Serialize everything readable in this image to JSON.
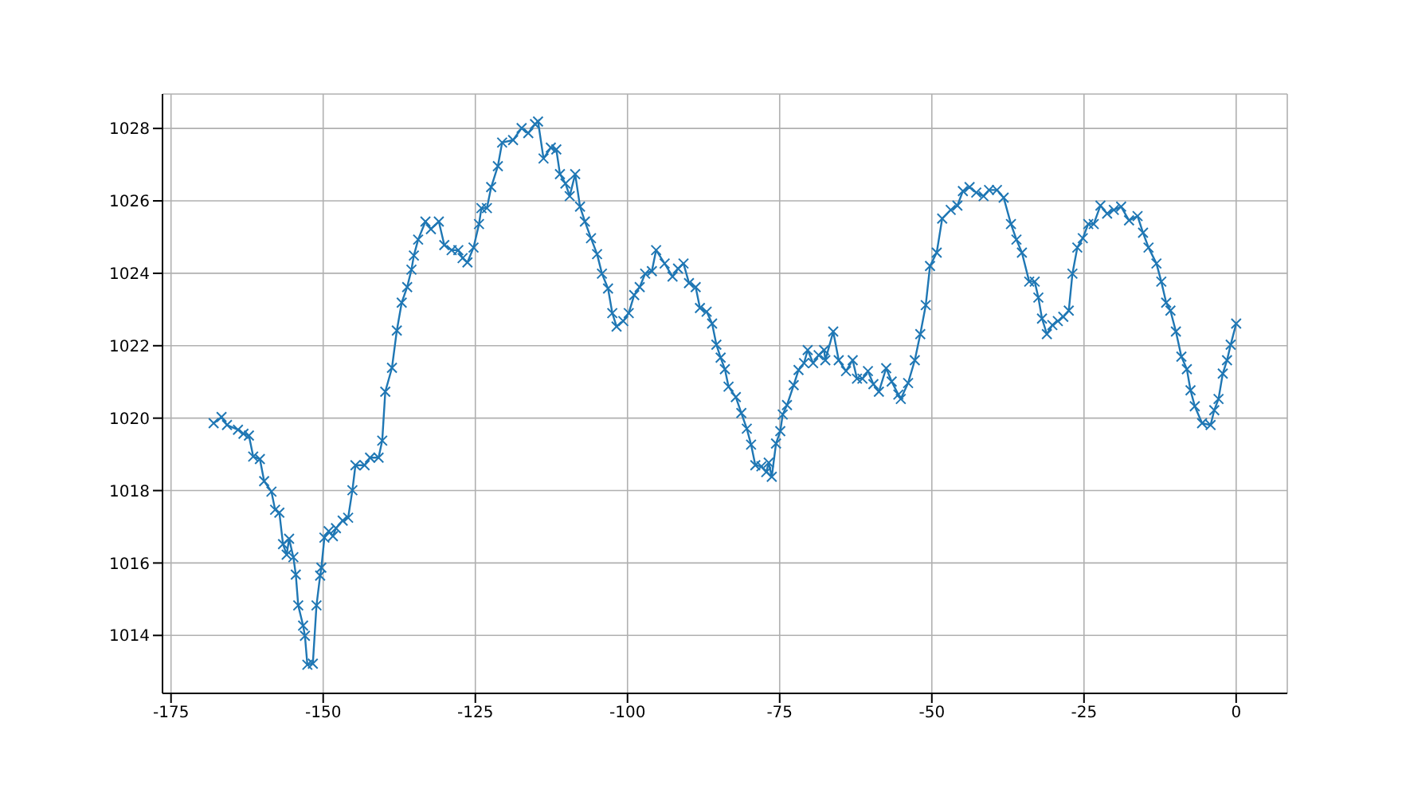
{
  "chart_data": {
    "type": "line",
    "x": [
      -168.0,
      -166.7,
      -165.8,
      -164.0,
      -163.1,
      -162.2,
      -161.5,
      -160.4,
      -159.7,
      -158.5,
      -157.9,
      -157.2,
      -156.6,
      -156.0,
      -155.6,
      -154.9,
      -154.5,
      -154.1,
      -153.3,
      -153.0,
      -152.6,
      -151.7,
      -151.1,
      -150.5,
      -150.3,
      -149.8,
      -149.1,
      -148.4,
      -147.9,
      -146.8,
      -145.9,
      -145.2,
      -144.7,
      -143.2,
      -142.3,
      -140.9,
      -140.3,
      -139.8,
      -138.7,
      -137.9,
      -137.1,
      -136.2,
      -135.5,
      -135.1,
      -134.4,
      -133.2,
      -132.3,
      -131.0,
      -130.1,
      -128.9,
      -127.8,
      -127.1,
      -126.3,
      -125.3,
      -124.4,
      -124.0,
      -123.1,
      -122.4,
      -121.3,
      -120.6,
      -118.8,
      -117.4,
      -116.3,
      -115.2,
      -114.7,
      -113.8,
      -112.6,
      -111.7,
      -111.1,
      -110.2,
      -109.5,
      -108.6,
      -107.8,
      -107.0,
      -106.0,
      -105.0,
      -104.2,
      -103.2,
      -102.5,
      -101.8,
      -100.7,
      -99.8,
      -98.9,
      -98.0,
      -97.1,
      -96.0,
      -95.3,
      -93.9,
      -92.6,
      -91.7,
      -90.8,
      -89.9,
      -88.8,
      -88.1,
      -87.0,
      -86.1,
      -85.4,
      -84.7,
      -84.0,
      -83.4,
      -82.2,
      -81.3,
      -80.4,
      -79.7,
      -79.0,
      -78.0,
      -77.2,
      -76.8,
      -76.3,
      -75.6,
      -74.9,
      -74.5,
      -73.8,
      -72.7,
      -71.9,
      -71.0,
      -70.4,
      -69.5,
      -68.6,
      -67.7,
      -67.5,
      -66.2,
      -65.3,
      -64.1,
      -63.0,
      -62.3,
      -61.4,
      -60.5,
      -59.6,
      -58.7,
      -57.5,
      -56.6,
      -55.5,
      -55.1,
      -53.9,
      -52.8,
      -51.9,
      -51.0,
      -50.3,
      -49.2,
      -48.3,
      -46.9,
      -45.8,
      -44.9,
      -43.8,
      -42.7,
      -41.5,
      -40.6,
      -39.3,
      -38.2,
      -37.0,
      -36.1,
      -35.2,
      -34.0,
      -33.1,
      -32.5,
      -31.9,
      -31.1,
      -30.2,
      -29.3,
      -28.4,
      -27.5,
      -26.9,
      -26.1,
      -25.2,
      -24.3,
      -23.4,
      -22.3,
      -21.2,
      -20.1,
      -18.9,
      -17.6,
      -16.2,
      -15.3,
      -14.4,
      -13.1,
      -12.3,
      -11.5,
      -10.8,
      -9.9,
      -9.0,
      -8.1,
      -7.5,
      -6.8,
      -5.6,
      -4.2,
      -3.6,
      -2.9,
      -2.2,
      -1.5,
      -0.9,
      0.0
    ],
    "series": [
      {
        "color": "#1f77b4",
        "values": [
          1019.86,
          1020.03,
          1019.81,
          1019.68,
          1019.57,
          1019.52,
          1018.94,
          1018.87,
          1018.26,
          1017.97,
          1017.47,
          1017.39,
          1016.52,
          1016.23,
          1016.67,
          1016.16,
          1015.68,
          1014.83,
          1014.27,
          1013.99,
          1013.19,
          1013.22,
          1014.83,
          1015.65,
          1015.87,
          1016.7,
          1016.88,
          1016.74,
          1016.96,
          1017.17,
          1017.25,
          1018.01,
          1018.7,
          1018.7,
          1018.91,
          1018.91,
          1019.38,
          1020.73,
          1021.39,
          1022.42,
          1023.19,
          1023.62,
          1024.1,
          1024.49,
          1024.93,
          1025.43,
          1025.22,
          1025.43,
          1024.78,
          1024.64,
          1024.64,
          1024.42,
          1024.3,
          1024.71,
          1025.36,
          1025.8,
          1025.8,
          1026.38,
          1026.96,
          1027.61,
          1027.68,
          1028.01,
          1027.87,
          1028.12,
          1028.19,
          1027.17,
          1027.47,
          1027.42,
          1026.74,
          1026.48,
          1026.13,
          1026.74,
          1025.84,
          1025.43,
          1024.97,
          1024.53,
          1023.99,
          1023.58,
          1022.9,
          1022.53,
          1022.68,
          1022.9,
          1023.4,
          1023.62,
          1023.99,
          1024.06,
          1024.64,
          1024.27,
          1023.91,
          1024.13,
          1024.27,
          1023.73,
          1023.62,
          1023.04,
          1022.94,
          1022.61,
          1022.03,
          1021.67,
          1021.35,
          1020.87,
          1020.58,
          1020.14,
          1019.71,
          1019.27,
          1018.7,
          1018.67,
          1018.51,
          1018.77,
          1018.38,
          1019.3,
          1019.64,
          1020.1,
          1020.36,
          1020.91,
          1021.33,
          1021.52,
          1021.88,
          1021.52,
          1021.74,
          1021.88,
          1021.6,
          1022.39,
          1021.6,
          1021.3,
          1021.6,
          1021.09,
          1021.09,
          1021.3,
          1020.94,
          1020.73,
          1021.38,
          1021.01,
          1020.65,
          1020.53,
          1020.97,
          1021.6,
          1022.32,
          1023.12,
          1024.2,
          1024.57,
          1025.51,
          1025.75,
          1025.87,
          1026.27,
          1026.38,
          1026.23,
          1026.13,
          1026.3,
          1026.3,
          1026.09,
          1025.36,
          1024.93,
          1024.57,
          1023.77,
          1023.77,
          1023.33,
          1022.75,
          1022.32,
          1022.57,
          1022.68,
          1022.8,
          1022.97,
          1023.99,
          1024.71,
          1024.97,
          1025.36,
          1025.36,
          1025.87,
          1025.65,
          1025.75,
          1025.84,
          1025.46,
          1025.58,
          1025.12,
          1024.71,
          1024.27,
          1023.77,
          1023.19,
          1022.97,
          1022.39,
          1021.7,
          1021.35,
          1020.77,
          1020.33,
          1019.86,
          1019.81,
          1020.22,
          1020.53,
          1021.23,
          1021.6,
          1022.03,
          1022.61
        ]
      }
    ],
    "xlim": [
      -176.4,
      8.4
    ],
    "ylim": [
      1012.4,
      1028.95
    ],
    "xticks": [
      -175,
      -150,
      -125,
      -100,
      -75,
      -50,
      -25,
      0
    ],
    "yticks": [
      1014,
      1016,
      1018,
      1020,
      1022,
      1024,
      1026,
      1028
    ],
    "grid": true,
    "marker": "cross",
    "line_style": "solid"
  }
}
